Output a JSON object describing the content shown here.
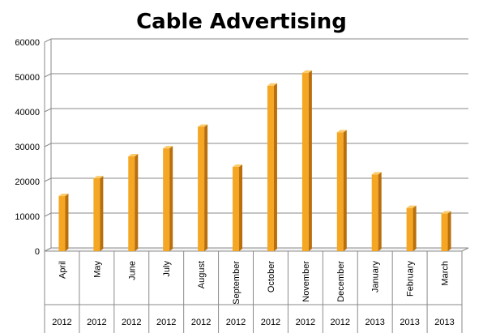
{
  "chart_data": {
    "type": "bar",
    "title": "Cable Advertising",
    "categories": [
      "April",
      "May",
      "June",
      "July",
      "August",
      "September",
      "October",
      "November",
      "December",
      "January",
      "February",
      "March"
    ],
    "years": [
      "2012",
      "2012",
      "2012",
      "2012",
      "2012",
      "2012",
      "2012",
      "2012",
      "2012",
      "2013",
      "2013",
      "2013"
    ],
    "values": [
      15800,
      20900,
      27200,
      29500,
      35700,
      24200,
      47500,
      51200,
      34100,
      22000,
      12400,
      10800
    ],
    "ylim": [
      0,
      60000
    ],
    "yticks": [
      0,
      10000,
      20000,
      30000,
      40000,
      50000,
      60000
    ],
    "grid": true,
    "legend": "none",
    "bar_color": "#F5A623",
    "bar_side_color": "#B86F0C",
    "bar_top_color": "#FBCB6A"
  }
}
